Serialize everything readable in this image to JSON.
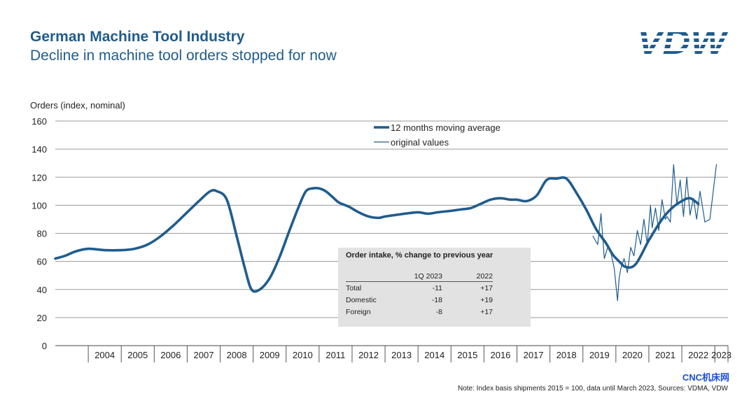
{
  "header": {
    "title": "German Machine Tool Industry",
    "subtitle": "Decline in machine tool orders stopped for now",
    "logo_text": "VDW"
  },
  "footer": {
    "note": "Note: Index basis shipments 2015 = 100, data until March 2023, Sources: VDMA, VDW",
    "watermark": "CNC机床网"
  },
  "colors": {
    "primary": "#1f5c8e",
    "grid": "#9a9a9a",
    "table_bg": "#e2e2e2"
  },
  "table": {
    "title": "Order intake, % change to previous year",
    "headers": [
      "",
      "1Q 2023",
      "2022"
    ],
    "rows": [
      [
        "Total",
        "-11",
        "+17"
      ],
      [
        "Domestic",
        "-18",
        "+19"
      ],
      [
        "Foreign",
        "-8",
        "+17"
      ]
    ]
  },
  "chart_data": {
    "type": "line",
    "ylabel": "Orders (index, nominal)",
    "ylim": [
      0,
      160
    ],
    "yticks": [
      "0",
      "20",
      "40",
      "60",
      "80",
      "100",
      "120",
      "140",
      "160"
    ],
    "xticks": [
      "2004",
      "2005",
      "2006",
      "2007",
      "2008",
      "2009",
      "2010",
      "2011",
      "2012",
      "2013",
      "2014",
      "2015",
      "2016",
      "2017",
      "2018",
      "2019",
      "2020",
      "2021",
      "2022",
      "2023"
    ],
    "grid": true,
    "legend_position": "top-center",
    "series": [
      {
        "name": "12 months moving average",
        "style": "thick",
        "x": [
          2003.0,
          2003.3,
          2003.6,
          2004.0,
          2004.5,
          2005.0,
          2005.4,
          2005.8,
          2006.2,
          2006.6,
          2007.0,
          2007.4,
          2007.7,
          2007.9,
          2008.2,
          2008.5,
          2008.75,
          2008.95,
          2009.2,
          2009.5,
          2009.8,
          2010.1,
          2010.4,
          2010.6,
          2010.8,
          2011.0,
          2011.2,
          2011.4,
          2011.6,
          2011.9,
          2012.2,
          2012.5,
          2012.8,
          2013.0,
          2013.3,
          2013.6,
          2014.0,
          2014.3,
          2014.6,
          2015.0,
          2015.3,
          2015.6,
          2015.9,
          2016.2,
          2016.5,
          2016.8,
          2017.0,
          2017.3,
          2017.6,
          2017.9,
          2018.2,
          2018.5,
          2018.8,
          2019.1,
          2019.4,
          2019.7,
          2019.9,
          2020.1,
          2020.3,
          2020.6,
          2021.0,
          2021.4,
          2021.7,
          2022.0,
          2022.25,
          2022.5
        ],
        "values": [
          62,
          64,
          67,
          69,
          68,
          68,
          69,
          72,
          78,
          86,
          95,
          104,
          110,
          110,
          104,
          78,
          55,
          40,
          40,
          48,
          63,
          82,
          100,
          110,
          112,
          112,
          110,
          106,
          102,
          99,
          95,
          92,
          91,
          92,
          93,
          94,
          95,
          94,
          95,
          96,
          97,
          98,
          101,
          104,
          105,
          104,
          104,
          103,
          107,
          118,
          119,
          119,
          109,
          97,
          83,
          73,
          65,
          60,
          56,
          58,
          75,
          90,
          98,
          103,
          105,
          101
        ]
      },
      {
        "name": "original values",
        "style": "thin",
        "x": [
          2019.3,
          2019.45,
          2019.55,
          2019.65,
          2019.75,
          2019.85,
          2019.95,
          2020.05,
          2020.1,
          2020.15,
          2020.25,
          2020.35,
          2020.45,
          2020.55,
          2020.65,
          2020.75,
          2020.85,
          2020.95,
          2021.05,
          2021.1,
          2021.2,
          2021.3,
          2021.4,
          2021.5,
          2021.55,
          2021.65,
          2021.75,
          2021.85,
          2021.95,
          2022.05,
          2022.15,
          2022.25,
          2022.35,
          2022.45,
          2022.55,
          2022.7,
          2022.85,
          2023.05
        ],
        "values": [
          78,
          72,
          94,
          62,
          70,
          66,
          55,
          32,
          48,
          55,
          62,
          52,
          70,
          64,
          82,
          72,
          90,
          72,
          100,
          84,
          98,
          82,
          104,
          90,
          92,
          88,
          129,
          100,
          118,
          92,
          120,
          93,
          105,
          90,
          110,
          88,
          90,
          129
        ]
      }
    ]
  }
}
